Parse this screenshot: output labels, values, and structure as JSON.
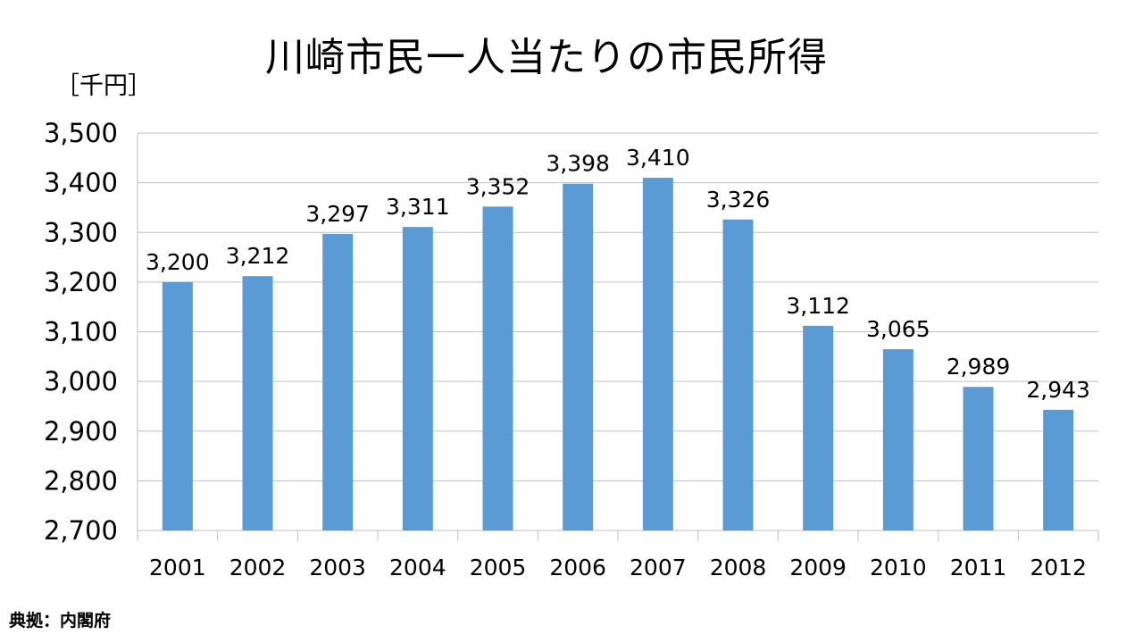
{
  "chart_data": {
    "type": "bar",
    "title": "川崎市民一人当たりの市民所得",
    "ylabel": "［千円］",
    "categories": [
      "2001",
      "2002",
      "2003",
      "2004",
      "2005",
      "2006",
      "2007",
      "2008",
      "2009",
      "2010",
      "2011",
      "2012"
    ],
    "values": [
      3200,
      3212,
      3297,
      3311,
      3352,
      3398,
      3410,
      3326,
      3112,
      3065,
      2989,
      2943
    ],
    "value_labels": [
      "3,200",
      "3,212",
      "3,297",
      "3,311",
      "3,352",
      "3,398",
      "3,410",
      "3,326",
      "3,112",
      "3,065",
      "2,989",
      "2,943"
    ],
    "ylim": [
      2700,
      3500
    ],
    "yticks": [
      2700,
      2800,
      2900,
      3000,
      3100,
      3200,
      3300,
      3400,
      3500
    ],
    "ytick_labels": [
      "2,700",
      "2,800",
      "2,900",
      "3,000",
      "3,100",
      "3,200",
      "3,300",
      "3,400",
      "3,500"
    ],
    "grid": true,
    "bar_color": "#5b9bd5",
    "grid_color": "#bfbfbf",
    "source": "典拠：内閣府"
  }
}
